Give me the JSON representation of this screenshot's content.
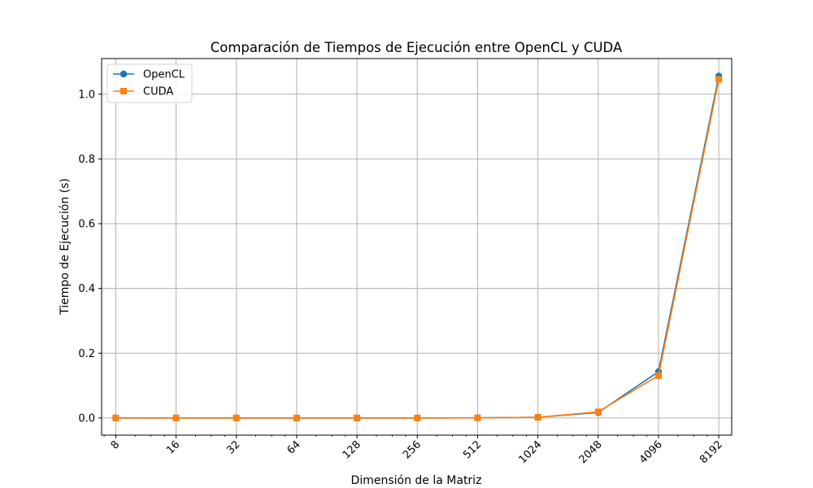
{
  "chart_data": {
    "type": "line",
    "title": "Comparación de Tiempos de Ejecución entre OpenCL y CUDA",
    "xlabel": "Dimensión de la Matriz",
    "ylabel": "Tiempo de Ejecución (s)",
    "x_scale": "log2",
    "x": [
      8,
      16,
      32,
      64,
      128,
      256,
      512,
      1024,
      2048,
      4096,
      8192
    ],
    "x_tick_labels": [
      "8",
      "16",
      "32",
      "64",
      "128",
      "256",
      "512",
      "1024",
      "2048",
      "4096",
      "8192"
    ],
    "y_ticks": [
      0.0,
      0.2,
      0.4,
      0.6,
      0.8,
      1.0
    ],
    "y_tick_labels": [
      "0.0",
      "0.2",
      "0.4",
      "0.6",
      "0.8",
      "1.0"
    ],
    "ylim": [
      -0.053,
      1.11
    ],
    "grid": true,
    "legend_position": "upper left",
    "series": [
      {
        "name": "OpenCL",
        "color": "#1f77b4",
        "marker": "circle",
        "values": [
          0.0,
          0.0,
          0.0,
          0.0,
          0.0,
          0.0,
          0.0005,
          0.002,
          0.017,
          0.143,
          1.056
        ]
      },
      {
        "name": "CUDA",
        "color": "#ff7f0e",
        "marker": "square",
        "values": [
          0.0,
          0.0,
          0.0,
          0.0,
          0.0,
          0.0,
          0.0005,
          0.002,
          0.019,
          0.131,
          1.046
        ]
      }
    ]
  }
}
